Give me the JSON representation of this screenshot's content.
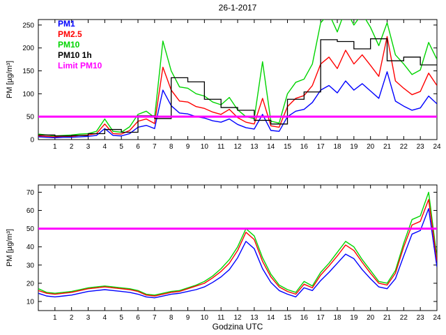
{
  "title": "26-1-2017",
  "xlabel": "Godzina UTC",
  "ylabel": "PM [µg/m³]",
  "legend": [
    {
      "label": "PM1",
      "color": "#0000ff"
    },
    {
      "label": "PM2.5",
      "color": "#ff0000"
    },
    {
      "label": "PM10",
      "color": "#00d400"
    },
    {
      "label": "PM10 1h",
      "color": "#000000"
    },
    {
      "label": "Limit PM10",
      "color": "#ff00ff"
    }
  ],
  "chart_data": [
    {
      "type": "line",
      "panel": "top",
      "xlabel": "",
      "ylabel": "PM [µg/m³]",
      "x_range": [
        0,
        24
      ],
      "y_range": [
        0,
        262
      ],
      "x_ticks": [
        1,
        2,
        3,
        4,
        5,
        6,
        7,
        8,
        9,
        10,
        11,
        12,
        13,
        14,
        15,
        16,
        17,
        18,
        19,
        20,
        21,
        22,
        23,
        24
      ],
      "y_ticks": [
        0,
        50,
        100,
        150,
        200,
        250
      ],
      "grid": false,
      "series": [
        {
          "name": "PM10",
          "color": "#00d400",
          "dx": 0.5,
          "x_start": 0,
          "values": [
            12,
            10,
            8,
            9,
            10,
            12,
            13,
            18,
            45,
            18,
            16,
            28,
            55,
            62,
            48,
            215,
            150,
            115,
            112,
            100,
            95,
            82,
            76,
            92,
            65,
            50,
            46,
            170,
            40,
            36,
            100,
            125,
            132,
            165,
            255,
            275,
            235,
            285,
            250,
            275,
            245,
            205,
            255,
            185,
            165,
            142,
            152,
            212,
            175
          ]
        },
        {
          "name": "PM2.5",
          "color": "#ff0000",
          "dx": 0.5,
          "x_start": 0,
          "values": [
            8,
            7,
            6,
            6,
            7,
            9,
            10,
            13,
            34,
            13,
            12,
            20,
            40,
            45,
            35,
            158,
            108,
            84,
            82,
            72,
            68,
            60,
            55,
            66,
            48,
            38,
            34,
            90,
            30,
            27,
            72,
            90,
            96,
            118,
            165,
            180,
            155,
            195,
            165,
            185,
            162,
            138,
            225,
            128,
            112,
            98,
            105,
            145,
            118
          ]
        },
        {
          "name": "PM1",
          "color": "#0000ff",
          "dx": 0.5,
          "x_start": 0,
          "values": [
            6,
            5,
            4,
            5,
            5,
            6,
            7,
            9,
            24,
            9,
            8,
            13,
            27,
            31,
            24,
            108,
            74,
            58,
            56,
            50,
            47,
            41,
            38,
            45,
            33,
            26,
            23,
            55,
            20,
            18,
            50,
            62,
            66,
            81,
            108,
            118,
            102,
            128,
            108,
            122,
            106,
            90,
            148,
            84,
            73,
            64,
            69,
            95,
            78
          ]
        },
        {
          "name": "PM10 1h",
          "color": "#000000",
          "step": true,
          "dx": 1,
          "x_start": 0,
          "values": [
            10,
            8,
            9,
            13,
            22,
            16,
            52,
            46,
            135,
            126,
            88,
            70,
            64,
            42,
            34,
            88,
            104,
            218,
            214,
            198,
            220,
            172,
            180,
            163
          ]
        }
      ],
      "limit": {
        "name": "Limit PM10",
        "value": 50,
        "color": "#ff00ff"
      }
    },
    {
      "type": "line",
      "panel": "bottom",
      "xlabel": "Godzina UTC",
      "ylabel": "PM [µg/m³]",
      "x_range": [
        0,
        24
      ],
      "y_range": [
        5,
        74
      ],
      "x_ticks": [
        1,
        2,
        3,
        4,
        5,
        6,
        7,
        8,
        9,
        10,
        11,
        12,
        13,
        14,
        15,
        16,
        17,
        18,
        19,
        20,
        21,
        22,
        23,
        24
      ],
      "y_ticks": [
        10,
        20,
        30,
        40,
        50,
        60,
        70
      ],
      "grid": false,
      "series": [
        {
          "name": "PM10",
          "color": "#00d400",
          "dx": 0.5,
          "x_start": 0,
          "values": [
            17,
            15,
            14.5,
            15,
            15.5,
            16.5,
            17.5,
            18,
            18.5,
            18,
            17.5,
            17,
            16,
            14,
            13.5,
            14.5,
            15.5,
            16,
            17.5,
            19,
            21,
            24,
            28,
            33,
            40,
            50,
            46,
            34,
            25,
            19,
            16.5,
            15,
            21,
            18.5,
            26,
            31,
            37,
            43,
            40,
            33,
            27,
            21,
            20,
            27,
            42,
            55,
            57,
            70,
            34
          ]
        },
        {
          "name": "PM2.5",
          "color": "#ff0000",
          "dx": 0.5,
          "x_start": 0,
          "values": [
            16,
            14.5,
            14,
            14.5,
            15,
            16,
            17,
            17.5,
            18,
            17.5,
            17,
            16.5,
            15.5,
            13.5,
            13,
            14,
            15,
            15.5,
            17,
            18.5,
            20,
            23,
            26.5,
            31,
            38,
            48,
            44,
            32,
            23.5,
            18,
            15.5,
            14,
            19.5,
            17.5,
            24.5,
            29.5,
            35,
            41,
            38,
            31.5,
            25.5,
            20,
            19,
            25.5,
            40,
            52,
            54,
            66,
            32
          ]
        },
        {
          "name": "PM1",
          "color": "#0000ff",
          "dx": 0.5,
          "x_start": 0,
          "values": [
            14.5,
            13,
            12.5,
            13,
            13.5,
            14.5,
            15.5,
            16,
            16.5,
            16,
            15.5,
            15,
            14,
            12.5,
            12,
            13,
            14,
            14.5,
            15.5,
            16.5,
            18,
            20.5,
            23.5,
            27.5,
            34,
            43,
            39,
            28,
            20.5,
            16,
            14,
            12.5,
            17.5,
            16,
            21.5,
            26,
            31,
            36,
            33.5,
            27.5,
            22.5,
            18,
            17,
            22.5,
            35,
            47,
            49,
            61,
            29
          ]
        }
      ],
      "limit": {
        "name": "Limit PM10",
        "value": 50,
        "color": "#ff00ff"
      }
    }
  ]
}
